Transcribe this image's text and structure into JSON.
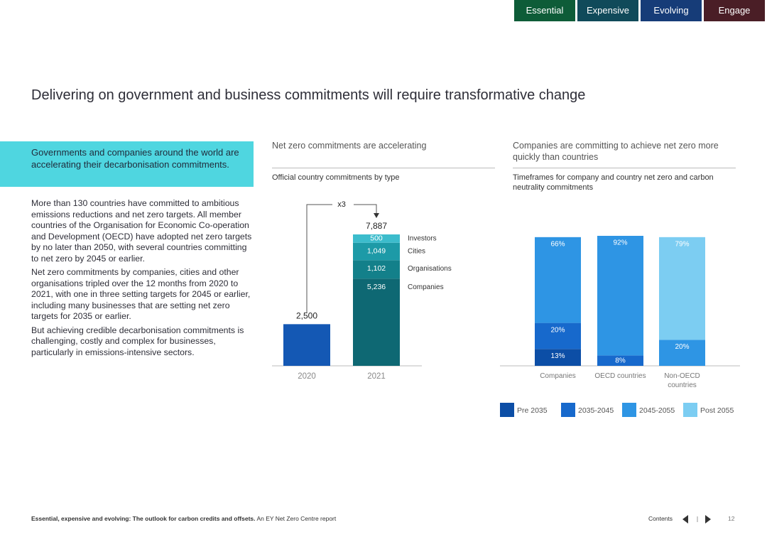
{
  "nav": [
    "Essential",
    "Expensive",
    "Evolving",
    "Engage"
  ],
  "title": "Delivering on government and business commitments will require transformative change",
  "callout": "Governments and companies around the world are accelerating their decarbonisation commitments.",
  "paragraphs": [
    "More than 130 countries have committed to ambitious emissions reductions and net zero targets. All member countries of the Organisation for Economic Co-operation and Development (OECD) have adopted net zero targets by no later than 2050, with several countries committing to net zero by 2045 or earlier.",
    "Net zero commitments by companies, cities and other organisations tripled over the 12 months from 2020 to 2021, with one in three setting targets for 2045 or earlier, including many businesses that are setting net zero targets for 2035 or earlier.",
    "But achieving credible decarbonisation commitments is challenging, costly and complex for businesses, particularly in emissions-intensive sectors."
  ],
  "chart_data": [
    {
      "type": "bar",
      "title": "Net zero commitments are accelerating",
      "subtitle": "Official country commitments by type",
      "annotation": "x3",
      "categories": [
        "2020",
        "2021"
      ],
      "totals": [
        2500,
        7887
      ],
      "total_labels": [
        "2,500",
        "7,887"
      ],
      "total_color": "#1458b4",
      "series": [
        {
          "name": "Companies",
          "color": "#0e6873",
          "values": [
            null,
            5236
          ],
          "value_labels": [
            null,
            "5,236"
          ]
        },
        {
          "name": "Organisations",
          "color": "#13808a",
          "values": [
            null,
            1102
          ],
          "value_labels": [
            null,
            "1,102"
          ]
        },
        {
          "name": "Cities",
          "color": "#1d9aa7",
          "values": [
            null,
            1049
          ],
          "value_labels": [
            null,
            "1,049"
          ]
        },
        {
          "name": "Investors",
          "color": "#3cbccc",
          "values": [
            null,
            500
          ],
          "value_labels": [
            null,
            "500"
          ]
        }
      ]
    },
    {
      "type": "stacked-bar",
      "title": "Companies are committing to achieve net zero more quickly than countries",
      "subtitle": "Timeframes for company and country net zero and carbon neutrality commitments",
      "categories": [
        "Companies",
        "OECD countries",
        "Non-OECD countries"
      ],
      "series": [
        {
          "name": "Pre 2035",
          "color": "#0c4ea6",
          "values": [
            13,
            null,
            null
          ],
          "value_labels": [
            "13%",
            null,
            null
          ]
        },
        {
          "name": "2035-2045",
          "color": "#1769cc",
          "values": [
            20,
            8,
            null
          ],
          "value_labels": [
            "20%",
            "8%",
            null
          ]
        },
        {
          "name": "2045-2055",
          "color": "#2e95e4",
          "values": [
            66,
            92,
            20
          ],
          "value_labels": [
            "66%",
            "92%",
            "20%"
          ]
        },
        {
          "name": "Post 2055",
          "color": "#7ccdf2",
          "values": [
            null,
            null,
            79
          ],
          "value_labels": [
            null,
            null,
            "79%"
          ]
        }
      ]
    }
  ],
  "footer": {
    "report": "Essential, expensive and evolving: The outlook for carbon credits and offsets.",
    "source": "An EY Net Zero Centre report",
    "contents": "Contents",
    "page": "12"
  }
}
